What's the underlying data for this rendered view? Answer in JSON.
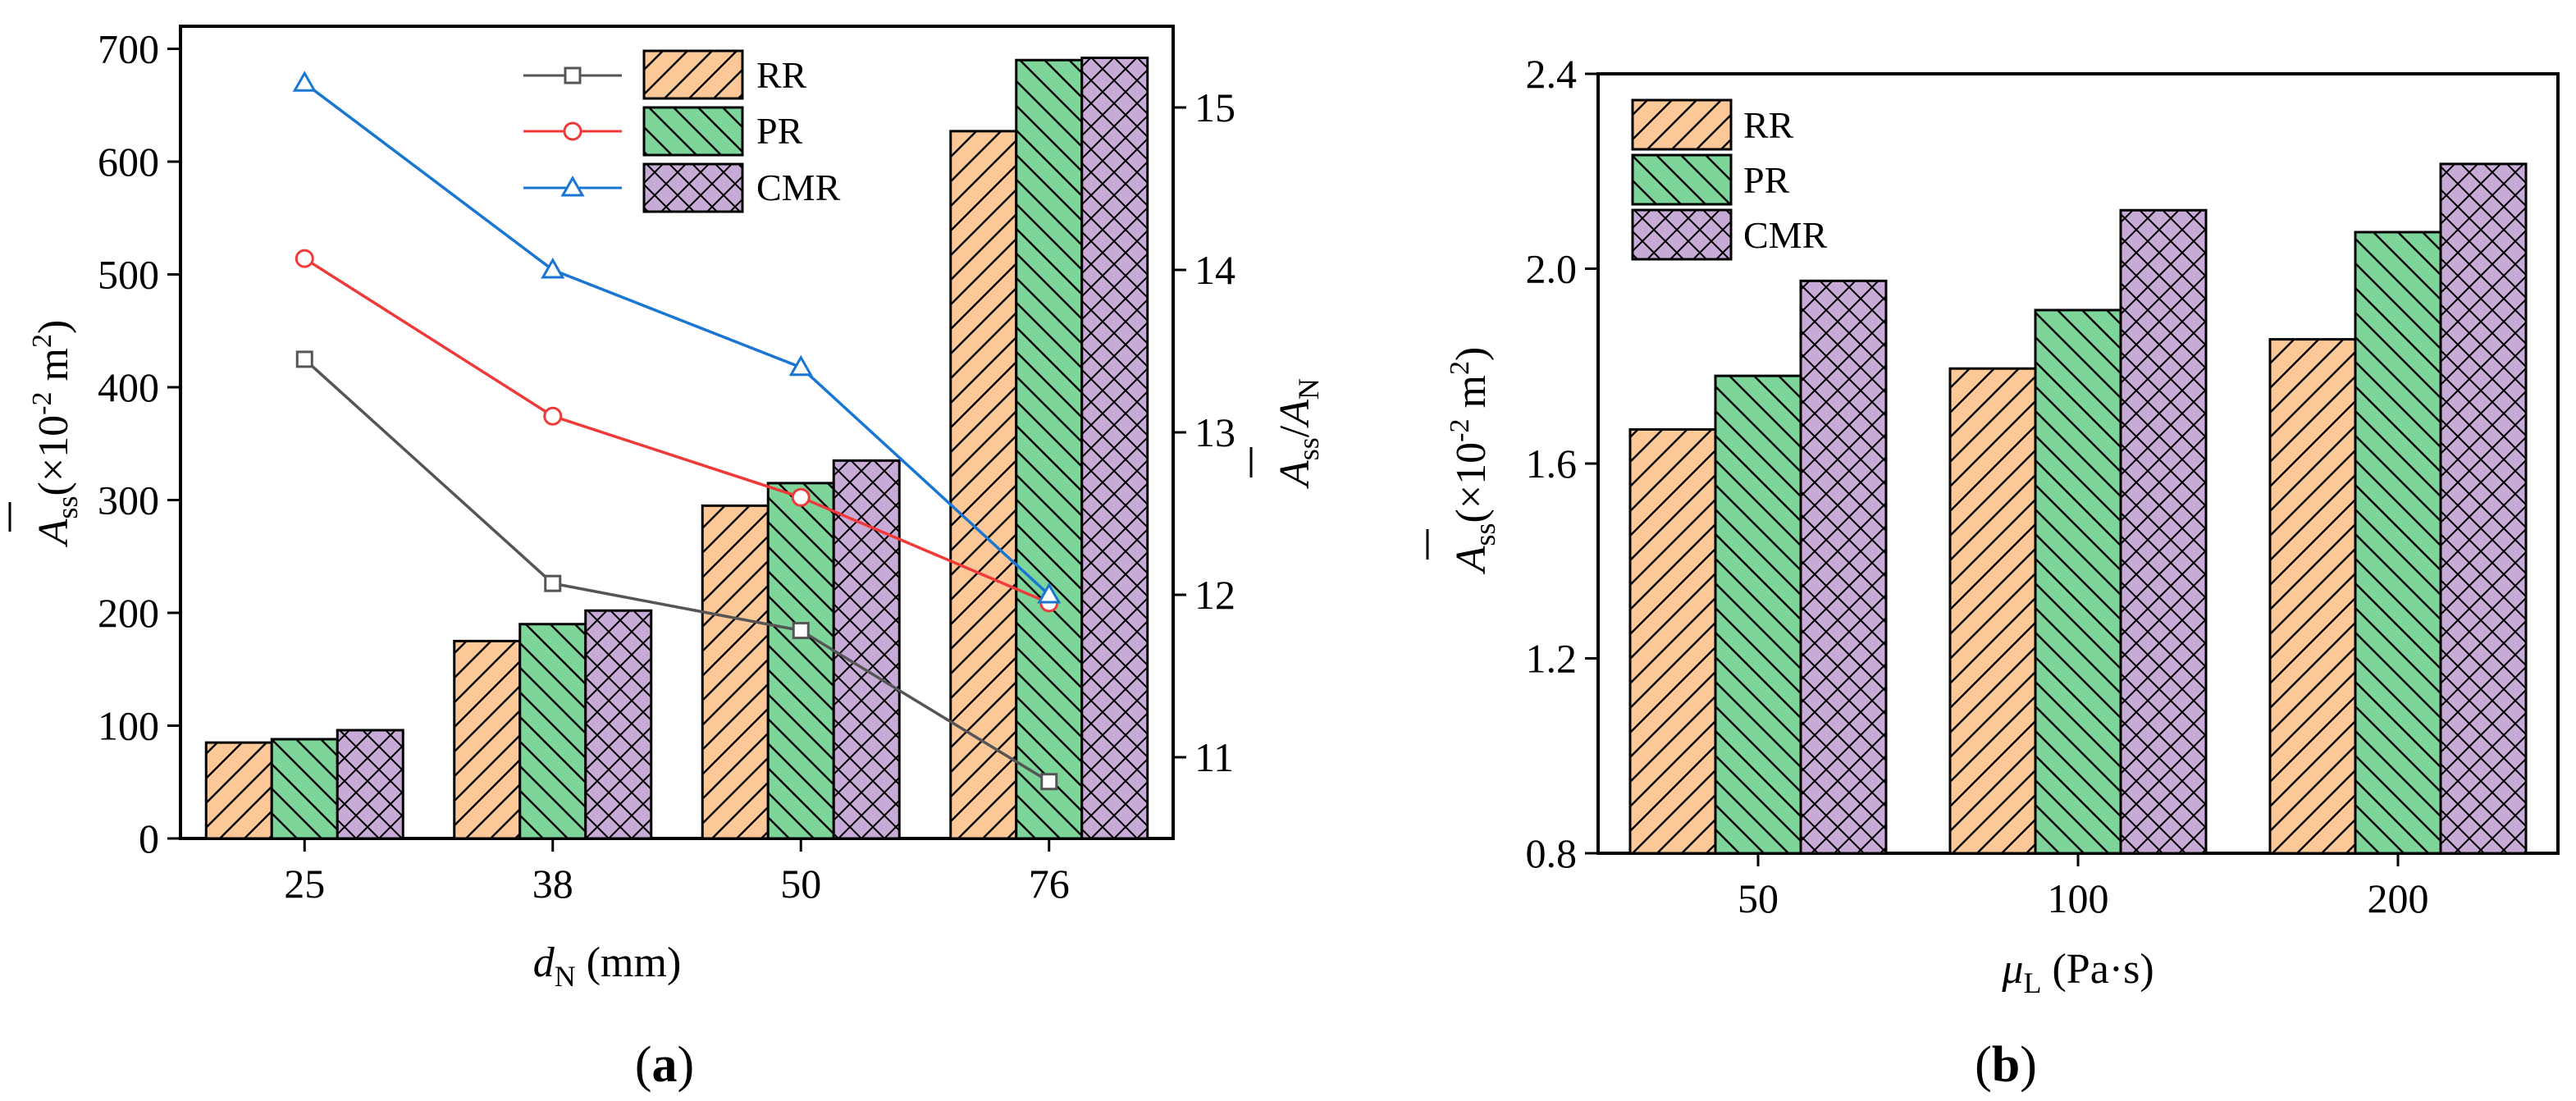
{
  "colors": {
    "rr_fill": "#fcc897",
    "pr_fill": "#7ed59a",
    "cmr_fill": "#c7abd6",
    "rr_line": "#555555",
    "pr_line": "#f03a3a",
    "cmr_line": "#1976d2"
  },
  "chart_data": [
    {
      "panel": "(a)",
      "type": "bar+line",
      "categories": [
        "25",
        "38",
        "50",
        "76"
      ],
      "xlabel": "d_N (mm)",
      "xlabel_parts": {
        "var": "d",
        "sub": "N",
        "unit": "(mm)"
      },
      "ylabel_left": "Ā_ss (×10^-2 m^2)",
      "ylabel_left_parts": {
        "var": "A",
        "sub": "ss",
        "unit_pre": "(×10",
        "exp1": "-2",
        "unit_mid": " m",
        "exp2": "2",
        "unit_post": ")"
      },
      "ylabel_right": "Ā_ss/A_N",
      "ylabel_right_parts": {
        "var": "A",
        "sub": "ss",
        "slash": "/",
        "var2": "A",
        "sub2": "N"
      },
      "ylim_left": [
        0,
        720
      ],
      "yticks_left": [
        0,
        100,
        200,
        300,
        400,
        500,
        600,
        700
      ],
      "ylim_right": [
        10.5,
        15.5
      ],
      "yticks_right": [
        11,
        12,
        13,
        14,
        15
      ],
      "bar_series": [
        {
          "name": "RR",
          "values": [
            85,
            175,
            295,
            627
          ]
        },
        {
          "name": "PR",
          "values": [
            88,
            190,
            315,
            690
          ]
        },
        {
          "name": "CMR",
          "values": [
            96,
            202,
            335,
            692
          ]
        }
      ],
      "line_series": [
        {
          "name": "RR",
          "marker": "square",
          "values": [
            13.45,
            12.07,
            11.78,
            10.85
          ]
        },
        {
          "name": "PR",
          "marker": "circle",
          "values": [
            14.07,
            13.1,
            12.6,
            11.95
          ]
        },
        {
          "name": "CMR",
          "marker": "triangle",
          "values": [
            15.15,
            14.0,
            13.4,
            12.0
          ]
        }
      ],
      "legend": [
        "RR",
        "PR",
        "CMR"
      ],
      "legend_position": "top-center"
    },
    {
      "panel": "(b)",
      "type": "bar",
      "categories": [
        "50",
        "100",
        "200"
      ],
      "xlabel": "μ_L (Pa·s)",
      "xlabel_parts": {
        "var": "μ",
        "sub": "L",
        "unit": "(Pa·s)"
      },
      "ylabel": "Ā_ss (×10^-2 m^2)",
      "ylabel_parts": {
        "var": "A",
        "sub": "ss",
        "unit_pre": "(×10",
        "exp1": "-2",
        "unit_mid": " m",
        "exp2": "2",
        "unit_post": ")"
      },
      "ylim": [
        0.8,
        2.4
      ],
      "yticks": [
        "0.8",
        "1.2",
        "1.6",
        "2.0",
        "2.4"
      ],
      "series": [
        {
          "name": "RR",
          "values": [
            1.67,
            1.795,
            1.855
          ]
        },
        {
          "name": "PR",
          "values": [
            1.78,
            1.915,
            2.075
          ]
        },
        {
          "name": "CMR",
          "values": [
            1.975,
            2.12,
            2.215
          ]
        }
      ],
      "legend": [
        "RR",
        "PR",
        "CMR"
      ],
      "legend_position": "top-left"
    }
  ]
}
